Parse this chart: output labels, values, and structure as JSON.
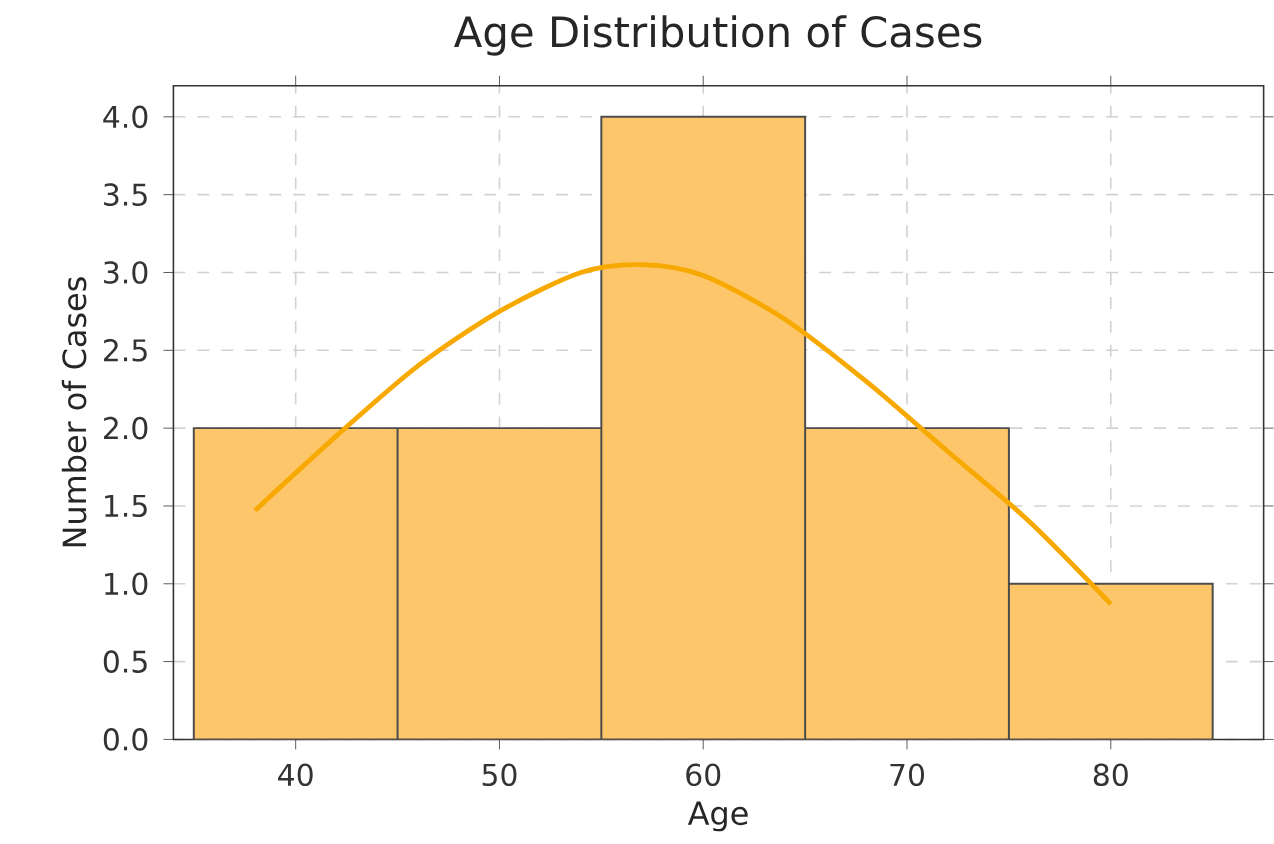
{
  "chart_data": {
    "type": "histogram",
    "title": "Age Distribution of Cases",
    "xlabel": "Age",
    "ylabel": "Number of Cases",
    "bins": [
      35,
      45,
      55,
      65,
      75,
      85
    ],
    "values": [
      2,
      2,
      4,
      2,
      1
    ],
    "color": "#fec66a",
    "series": [
      {
        "type": "line",
        "color": "#f7a900",
        "x": [
          38,
          42,
          46,
          50,
          54,
          57,
          60,
          64,
          68,
          72,
          76,
          80
        ],
        "values": [
          1.47,
          1.95,
          2.4,
          2.75,
          3.0,
          3.05,
          2.98,
          2.7,
          2.3,
          1.85,
          1.4,
          0.87
        ]
      }
    ],
    "xlim": [
      34,
      87.5
    ],
    "ylim": [
      0,
      4.2
    ],
    "xticks": [
      40,
      50,
      60,
      70,
      80
    ],
    "yticks": [
      {
        "value": 0,
        "label": "0.0"
      },
      {
        "value": 0.5,
        "label": "0.5"
      },
      {
        "value": 1,
        "label": "1.0"
      },
      {
        "value": 1.5,
        "label": "1.5"
      },
      {
        "value": 2,
        "label": "2.0"
      },
      {
        "value": 2.5,
        "label": "2.5"
      },
      {
        "value": 3,
        "label": "3.0"
      },
      {
        "value": 3.5,
        "label": "3.5"
      },
      {
        "value": 4,
        "label": "4.0"
      }
    ],
    "grid": true
  }
}
